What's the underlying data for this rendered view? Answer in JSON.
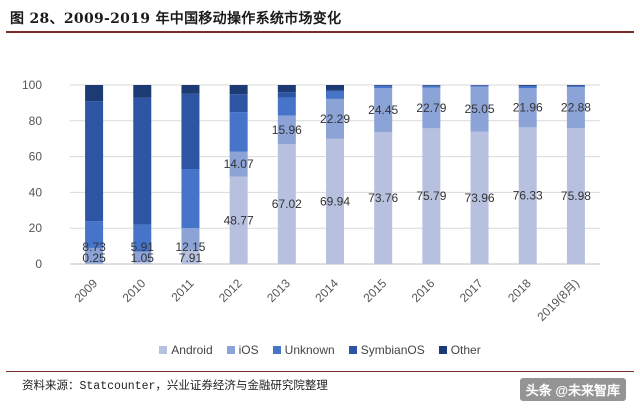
{
  "figure_title": "图 28、2009-2019 年中国移动操作系统市场变化",
  "source_note": "资料来源：Statcounter，兴业证券经济与金融研究院整理",
  "watermark": "头条 @未来智库",
  "colors": {
    "Android": "#b7c1df",
    "iOS": "#8ca3d7",
    "Unknown": "#4674c9",
    "SymbianOS": "#2d55a3",
    "Other": "#1c3a73"
  },
  "chart_data": {
    "type": "bar",
    "stacked": true,
    "categories": [
      "2009",
      "2010",
      "2011",
      "2012",
      "2013",
      "2014",
      "2015",
      "2016",
      "2017",
      "2018",
      "2019(8月)"
    ],
    "ylim": [
      0,
      100
    ],
    "yticks": [
      0,
      20,
      40,
      60,
      80,
      100
    ],
    "grid": true,
    "legend_position": "bottom",
    "series": [
      {
        "name": "Android",
        "values": [
          0.25,
          1.05,
          7.91,
          48.77,
          67.02,
          69.94,
          73.76,
          75.79,
          73.96,
          76.33,
          75.98
        ]
      },
      {
        "name": "iOS",
        "values": [
          8.73,
          5.91,
          12.15,
          14.07,
          15.96,
          22.29,
          24.45,
          22.79,
          25.05,
          21.96,
          22.88
        ]
      },
      {
        "name": "Unknown",
        "values": [
          15,
          15,
          33,
          22,
          10,
          4,
          1.2,
          1.0,
          0.8,
          1.2,
          0.8
        ]
      },
      {
        "name": "SymbianOS",
        "values": [
          67,
          71,
          42,
          10,
          3,
          1,
          0.2,
          0.1,
          0,
          0,
          0
        ]
      },
      {
        "name": "Other",
        "values": [
          9.02,
          7.04,
          4.94,
          5.16,
          4.02,
          2.77,
          0.39,
          0.32,
          0.19,
          0.51,
          0.34
        ]
      }
    ],
    "data_labels": {
      "Android": [
        "0.25",
        "1.05",
        "7.91",
        "48.77",
        "67.02",
        "69.94",
        "73.76",
        "75.79",
        "73.96",
        "76.33",
        "75.98"
      ],
      "iOS": [
        "8.73",
        "5.91",
        "12.15",
        "14.07",
        "15.96",
        "22.29",
        "24.45",
        "22.79",
        "25.05",
        "21.96",
        "22.88"
      ]
    }
  }
}
